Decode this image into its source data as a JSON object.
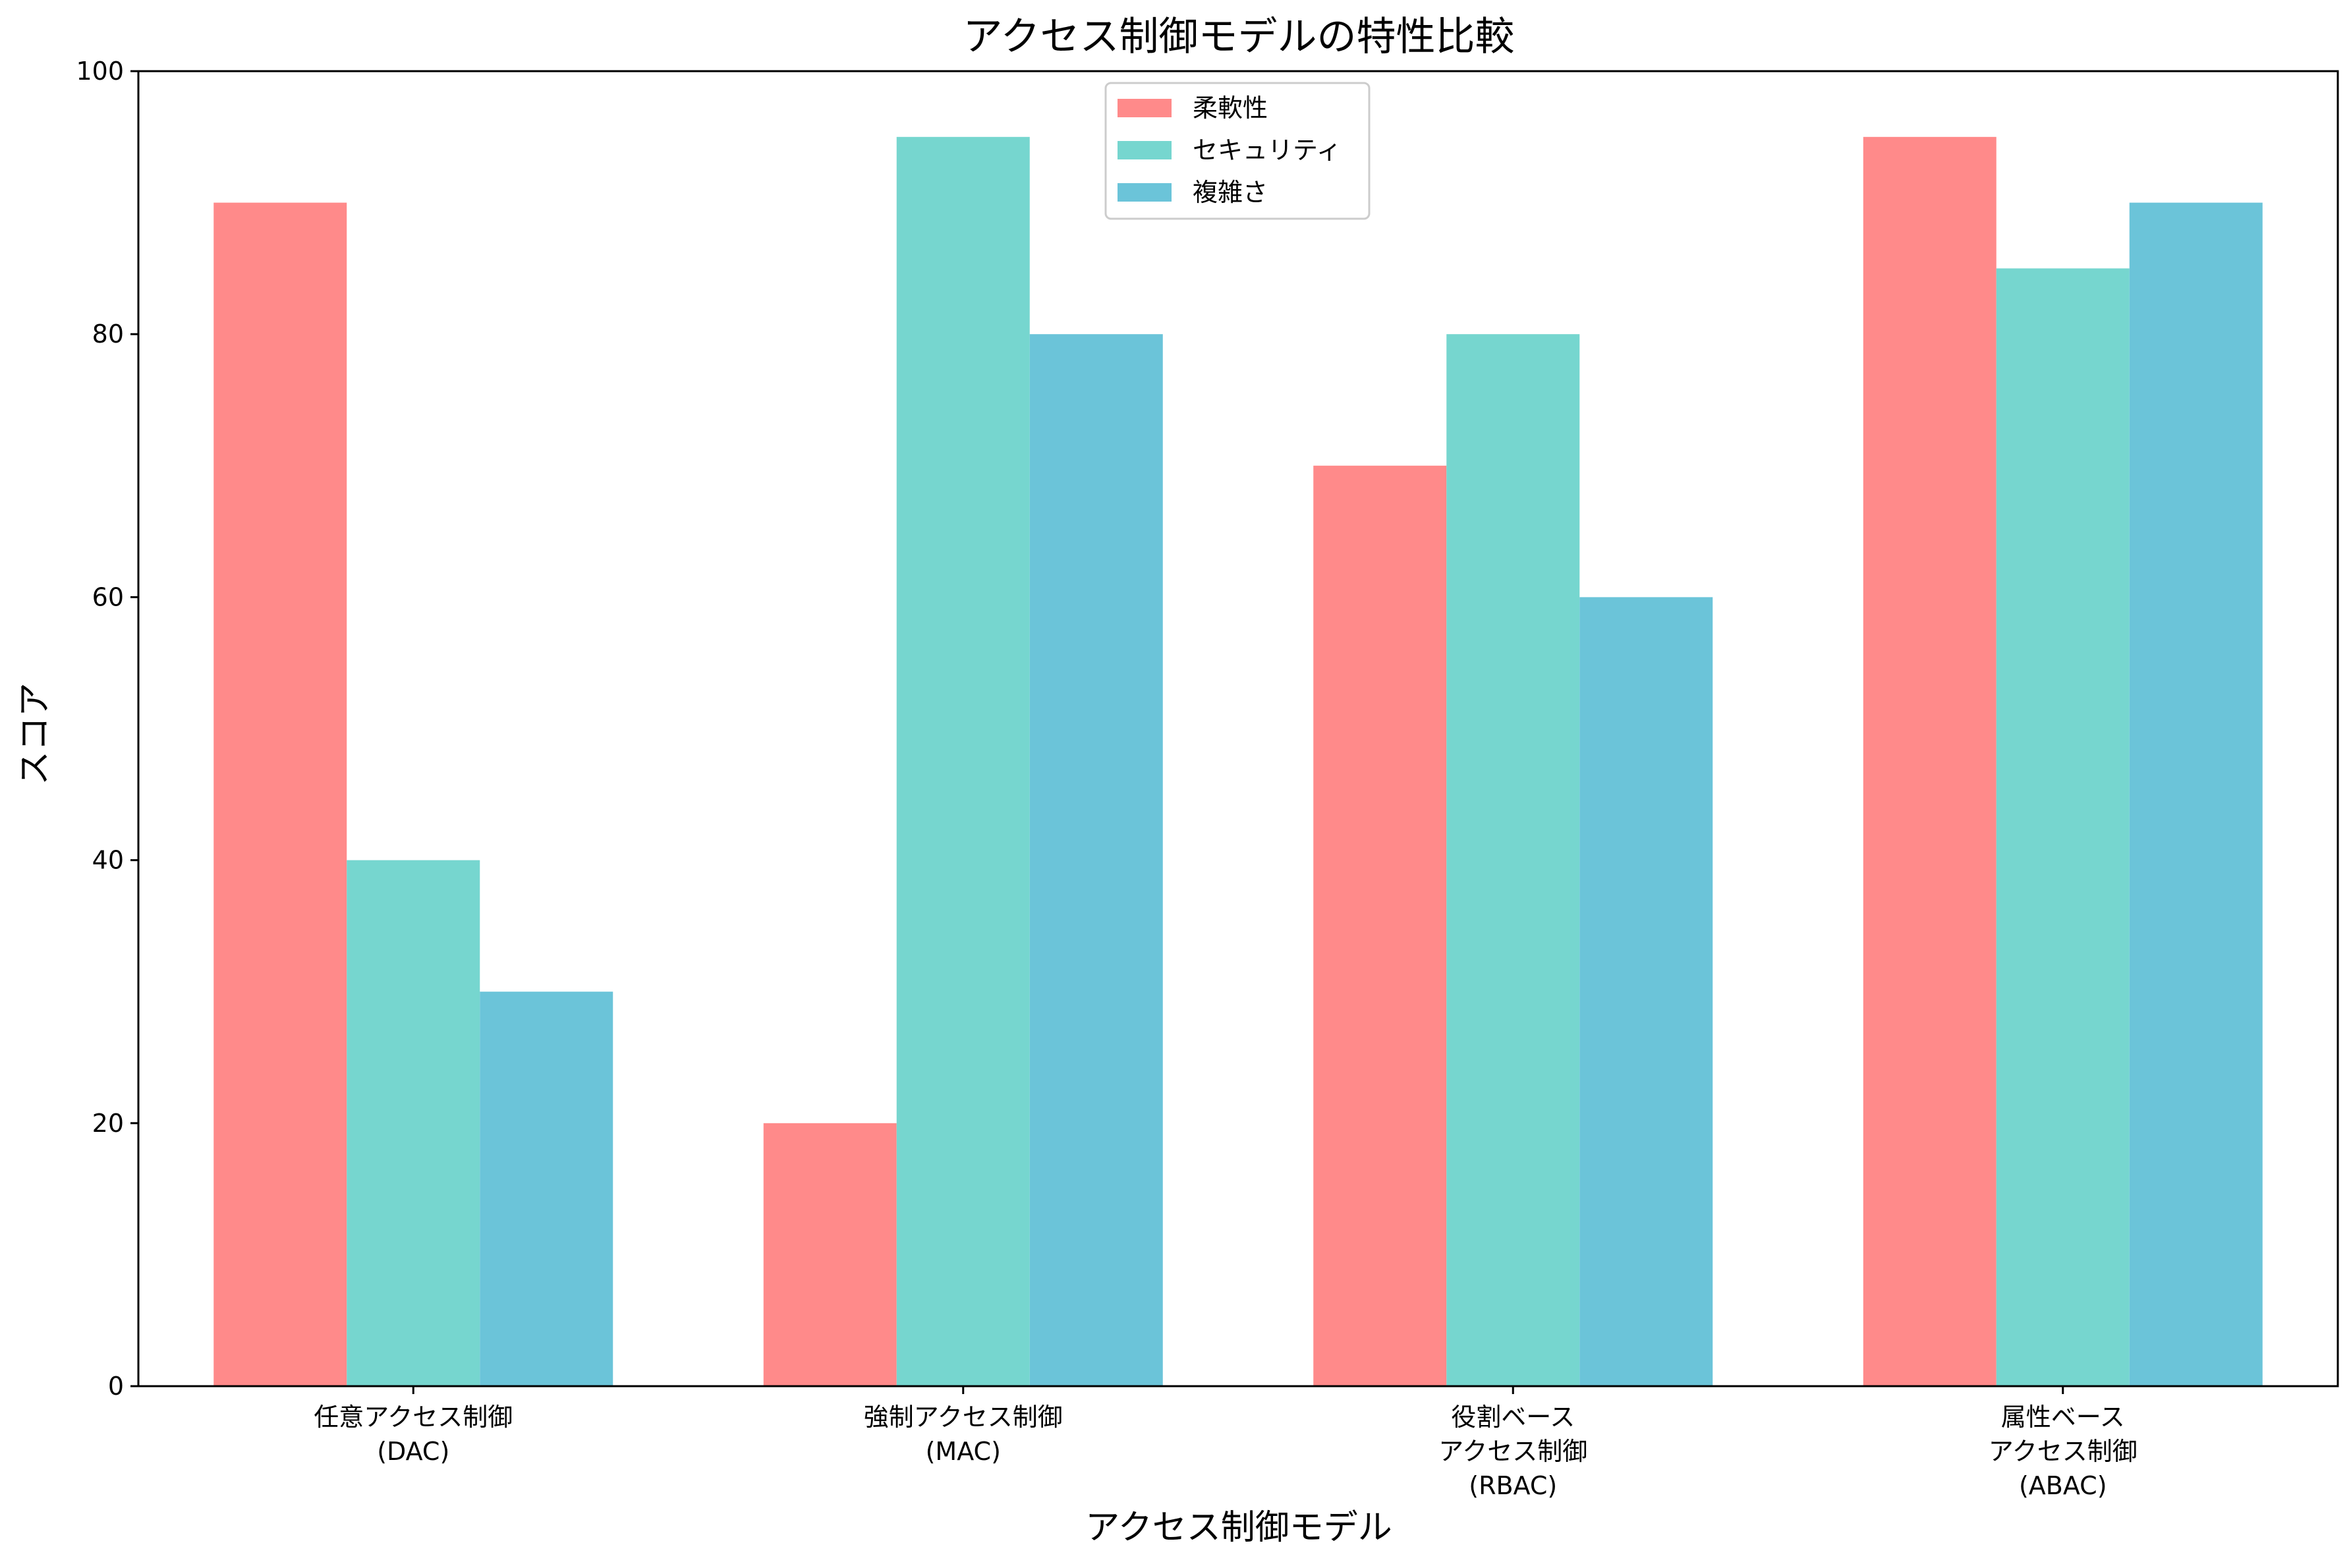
{
  "chart_data": {
    "type": "bar",
    "title": "アクセス制御モデルの特性比較",
    "xlabel": "アクセス制御モデル",
    "ylabel": "スコア",
    "ylim": [
      0,
      100
    ],
    "yticks": [
      0,
      20,
      40,
      60,
      80,
      100
    ],
    "categories": [
      [
        "任意アクセス制御",
        "(DAC)"
      ],
      [
        "強制アクセス制御",
        "(MAC)"
      ],
      [
        "役割ベース",
        "アクセス制御",
        "(RBAC)"
      ],
      [
        "属性ベース",
        "アクセス制御",
        "(ABAC)"
      ]
    ],
    "series": [
      {
        "name": "柔軟性",
        "color": "#ff8a8a",
        "values": [
          90,
          20,
          70,
          95
        ]
      },
      {
        "name": "セキュリティ",
        "color": "#76d6cf",
        "values": [
          40,
          95,
          80,
          85
        ]
      },
      {
        "name": "複雑さ",
        "color": "#6bc4d9",
        "values": [
          30,
          80,
          60,
          90
        ]
      }
    ],
    "grid": false,
    "legend_position": "top-center"
  }
}
